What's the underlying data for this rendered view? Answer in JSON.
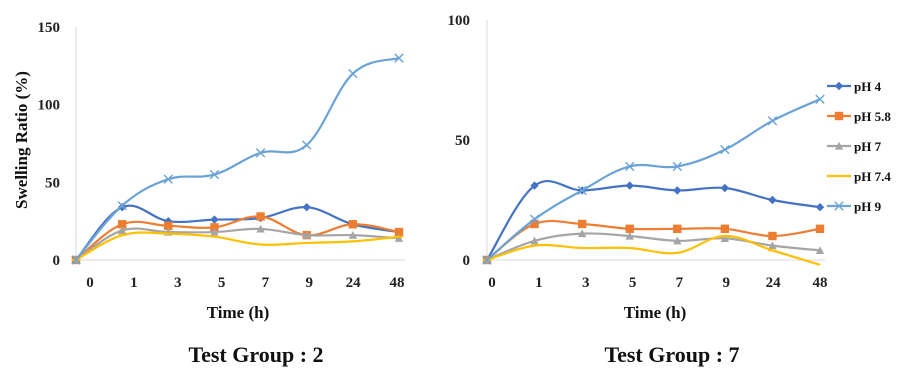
{
  "colors": {
    "pH 4": "#4472C4",
    "pH 5.8": "#ED7D31",
    "pH 7": "#A5A5A5",
    "pH 7.4": "#FFC000",
    "pH 9": "#6BA3D6"
  },
  "legend": [
    "pH 4",
    "pH 5.8",
    "pH 7",
    "pH 7.4",
    "pH 9"
  ],
  "chart_data": [
    {
      "type": "line",
      "title": "Test Group : 2",
      "xlabel": "Time (h)",
      "ylabel": "Swelling Ratio (%)",
      "categories": [
        "0",
        "1",
        "3",
        "5",
        "7",
        "9",
        "24",
        "48"
      ],
      "yticks": [
        0,
        50,
        100,
        150
      ],
      "ylim": [
        0,
        150
      ],
      "grid": false,
      "series": [
        {
          "name": "pH 4",
          "marker": "diamond",
          "values": [
            0,
            34,
            25,
            26,
            27,
            34,
            23,
            18
          ]
        },
        {
          "name": "pH 5.8",
          "marker": "square",
          "values": [
            0,
            23,
            22,
            21,
            28,
            16,
            23,
            18
          ]
        },
        {
          "name": "pH 7",
          "marker": "triangle",
          "values": [
            0,
            19,
            18,
            18,
            20,
            16,
            16,
            14
          ]
        },
        {
          "name": "pH 7.4",
          "marker": "cross",
          "values": [
            0,
            16,
            17,
            15,
            10,
            11,
            12,
            15
          ]
        },
        {
          "name": "pH 9",
          "marker": "star",
          "values": [
            0,
            35,
            52,
            55,
            69,
            74,
            120,
            130
          ]
        }
      ]
    },
    {
      "type": "line",
      "title": "Test Group : 7",
      "xlabel": "Time (h)",
      "ylabel": "",
      "categories": [
        "0",
        "1",
        "3",
        "5",
        "7",
        "9",
        "24",
        "48"
      ],
      "yticks": [
        0,
        50,
        100
      ],
      "ylim": [
        0,
        100
      ],
      "grid": false,
      "legend_position": "right",
      "series": [
        {
          "name": "pH 4",
          "marker": "diamond",
          "values": [
            0,
            31,
            29,
            31,
            29,
            30,
            25,
            22
          ]
        },
        {
          "name": "pH 5.8",
          "marker": "square",
          "values": [
            0,
            15,
            15,
            13,
            13,
            13,
            10,
            13
          ]
        },
        {
          "name": "pH 7",
          "marker": "triangle",
          "values": [
            0,
            8,
            11,
            10,
            8,
            9,
            6,
            4
          ]
        },
        {
          "name": "pH 7.4",
          "marker": "cross",
          "values": [
            0,
            6,
            5,
            5,
            3,
            10,
            4,
            -2
          ]
        },
        {
          "name": "pH 9",
          "marker": "star",
          "values": [
            0,
            17,
            29,
            39,
            39,
            46,
            58,
            67
          ]
        }
      ]
    }
  ]
}
